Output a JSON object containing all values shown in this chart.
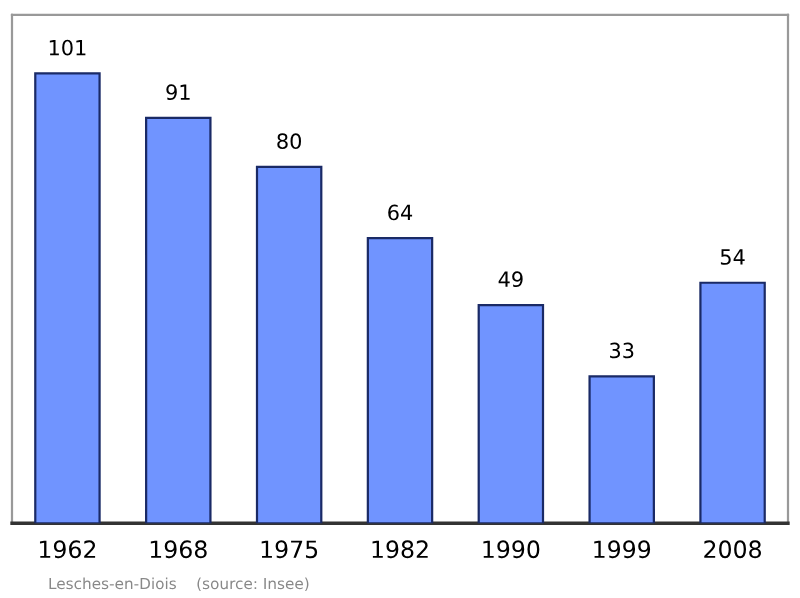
{
  "chart_data": {
    "type": "bar",
    "categories": [
      "1962",
      "1968",
      "1975",
      "1982",
      "1990",
      "1999",
      "2008"
    ],
    "values": [
      101,
      91,
      80,
      64,
      49,
      33,
      54
    ],
    "color": "#7094ff",
    "data_labels": true,
    "grid": false,
    "legend": false,
    "annotations": [
      "Lesches-en-Diois    (source: Insee)"
    ]
  }
}
